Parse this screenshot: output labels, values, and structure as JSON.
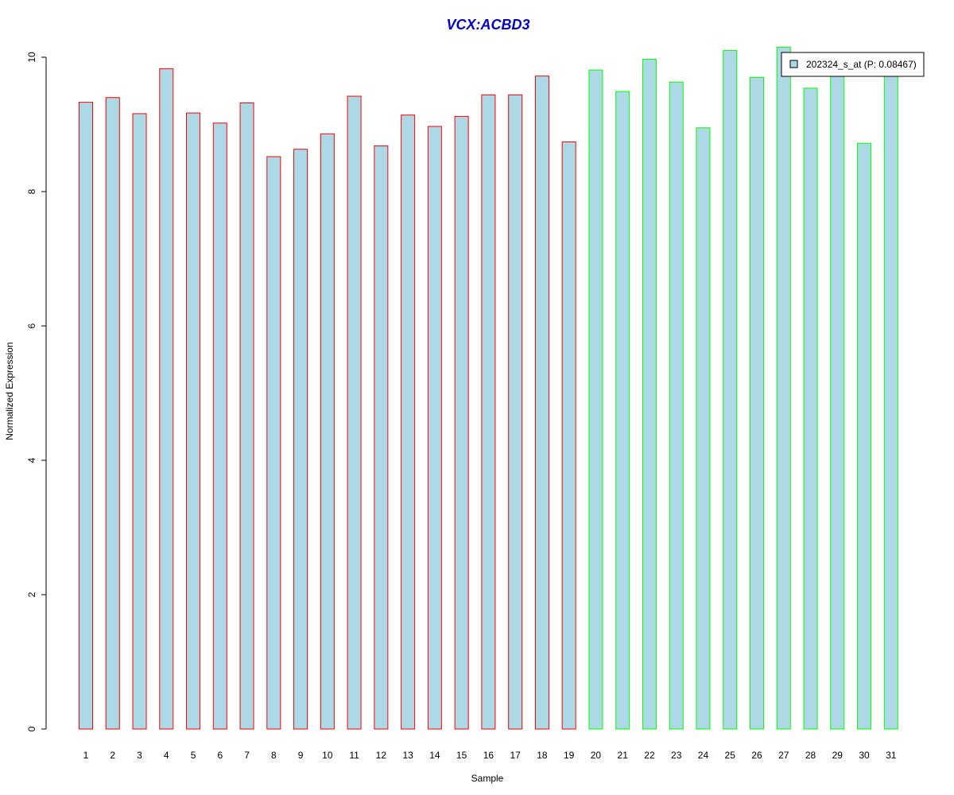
{
  "chart_data": {
    "type": "bar",
    "title": "VCX:ACBD3",
    "xlabel": "Sample",
    "ylabel": "Normalized Expression",
    "ylim": [
      0,
      10
    ],
    "y_ticks": [
      "0",
      "2",
      "4",
      "6",
      "8",
      "10"
    ],
    "categories": [
      "1",
      "2",
      "3",
      "4",
      "5",
      "6",
      "7",
      "8",
      "9",
      "10",
      "11",
      "12",
      "13",
      "14",
      "15",
      "16",
      "17",
      "18",
      "19",
      "20",
      "21",
      "22",
      "23",
      "24",
      "25",
      "26",
      "27",
      "28",
      "29",
      "30",
      "31"
    ],
    "values": [
      9.33,
      9.4,
      9.16,
      9.83,
      9.17,
      9.02,
      9.32,
      8.52,
      8.63,
      8.86,
      9.42,
      8.68,
      9.14,
      8.97,
      9.12,
      9.44,
      9.44,
      9.72,
      8.74,
      9.81,
      9.49,
      9.97,
      9.63,
      8.95,
      10.1,
      9.7,
      10.15,
      9.54,
      9.8,
      8.72,
      9.8
    ],
    "groups": [
      "red",
      "red",
      "red",
      "red",
      "red",
      "red",
      "red",
      "red",
      "red",
      "red",
      "red",
      "red",
      "red",
      "red",
      "red",
      "red",
      "red",
      "red",
      "red",
      "green",
      "green",
      "green",
      "green",
      "green",
      "green",
      "green",
      "green",
      "green",
      "green",
      "green",
      "green"
    ],
    "legend": {
      "label": "202324_s_at (P: 0.08467)",
      "position": "top-right"
    },
    "colors": {
      "fill": "#add8e6",
      "group_red": "#ff0000",
      "group_green": "#00ff00",
      "title": "#0000cd"
    },
    "grid": false
  }
}
